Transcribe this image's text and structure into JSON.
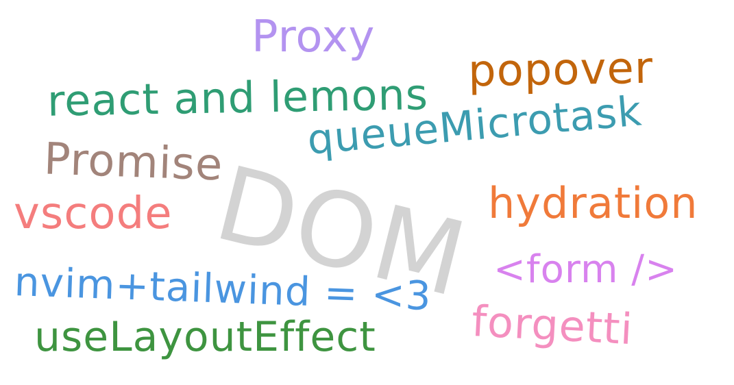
{
  "words": {
    "dom": {
      "text": "DOM",
      "color": "#cfcfcf"
    },
    "proxy": {
      "text": "Proxy",
      "color": "#b393f0"
    },
    "popover": {
      "text": "popover",
      "color": "#c2650b"
    },
    "react": {
      "text": "react and lemons",
      "color": "#2f9d74"
    },
    "queue": {
      "text": "queueMicrotask",
      "color": "#3c9cb0"
    },
    "promise": {
      "text": "Promise",
      "color": "#a2847a"
    },
    "vscode": {
      "text": "vscode",
      "color": "#f47d7d"
    },
    "hydration": {
      "text": "hydration",
      "color": "#f07a3a"
    },
    "nvim": {
      "text": "nvim+tailwind = <3",
      "color": "#4a95e0"
    },
    "form": {
      "text": "<form />",
      "color": "#d882ee"
    },
    "forgetti": {
      "text": "forgetti",
      "color": "#f48fbf"
    },
    "uselayout": {
      "text": "useLayoutEffect",
      "color": "#3e9440"
    }
  }
}
